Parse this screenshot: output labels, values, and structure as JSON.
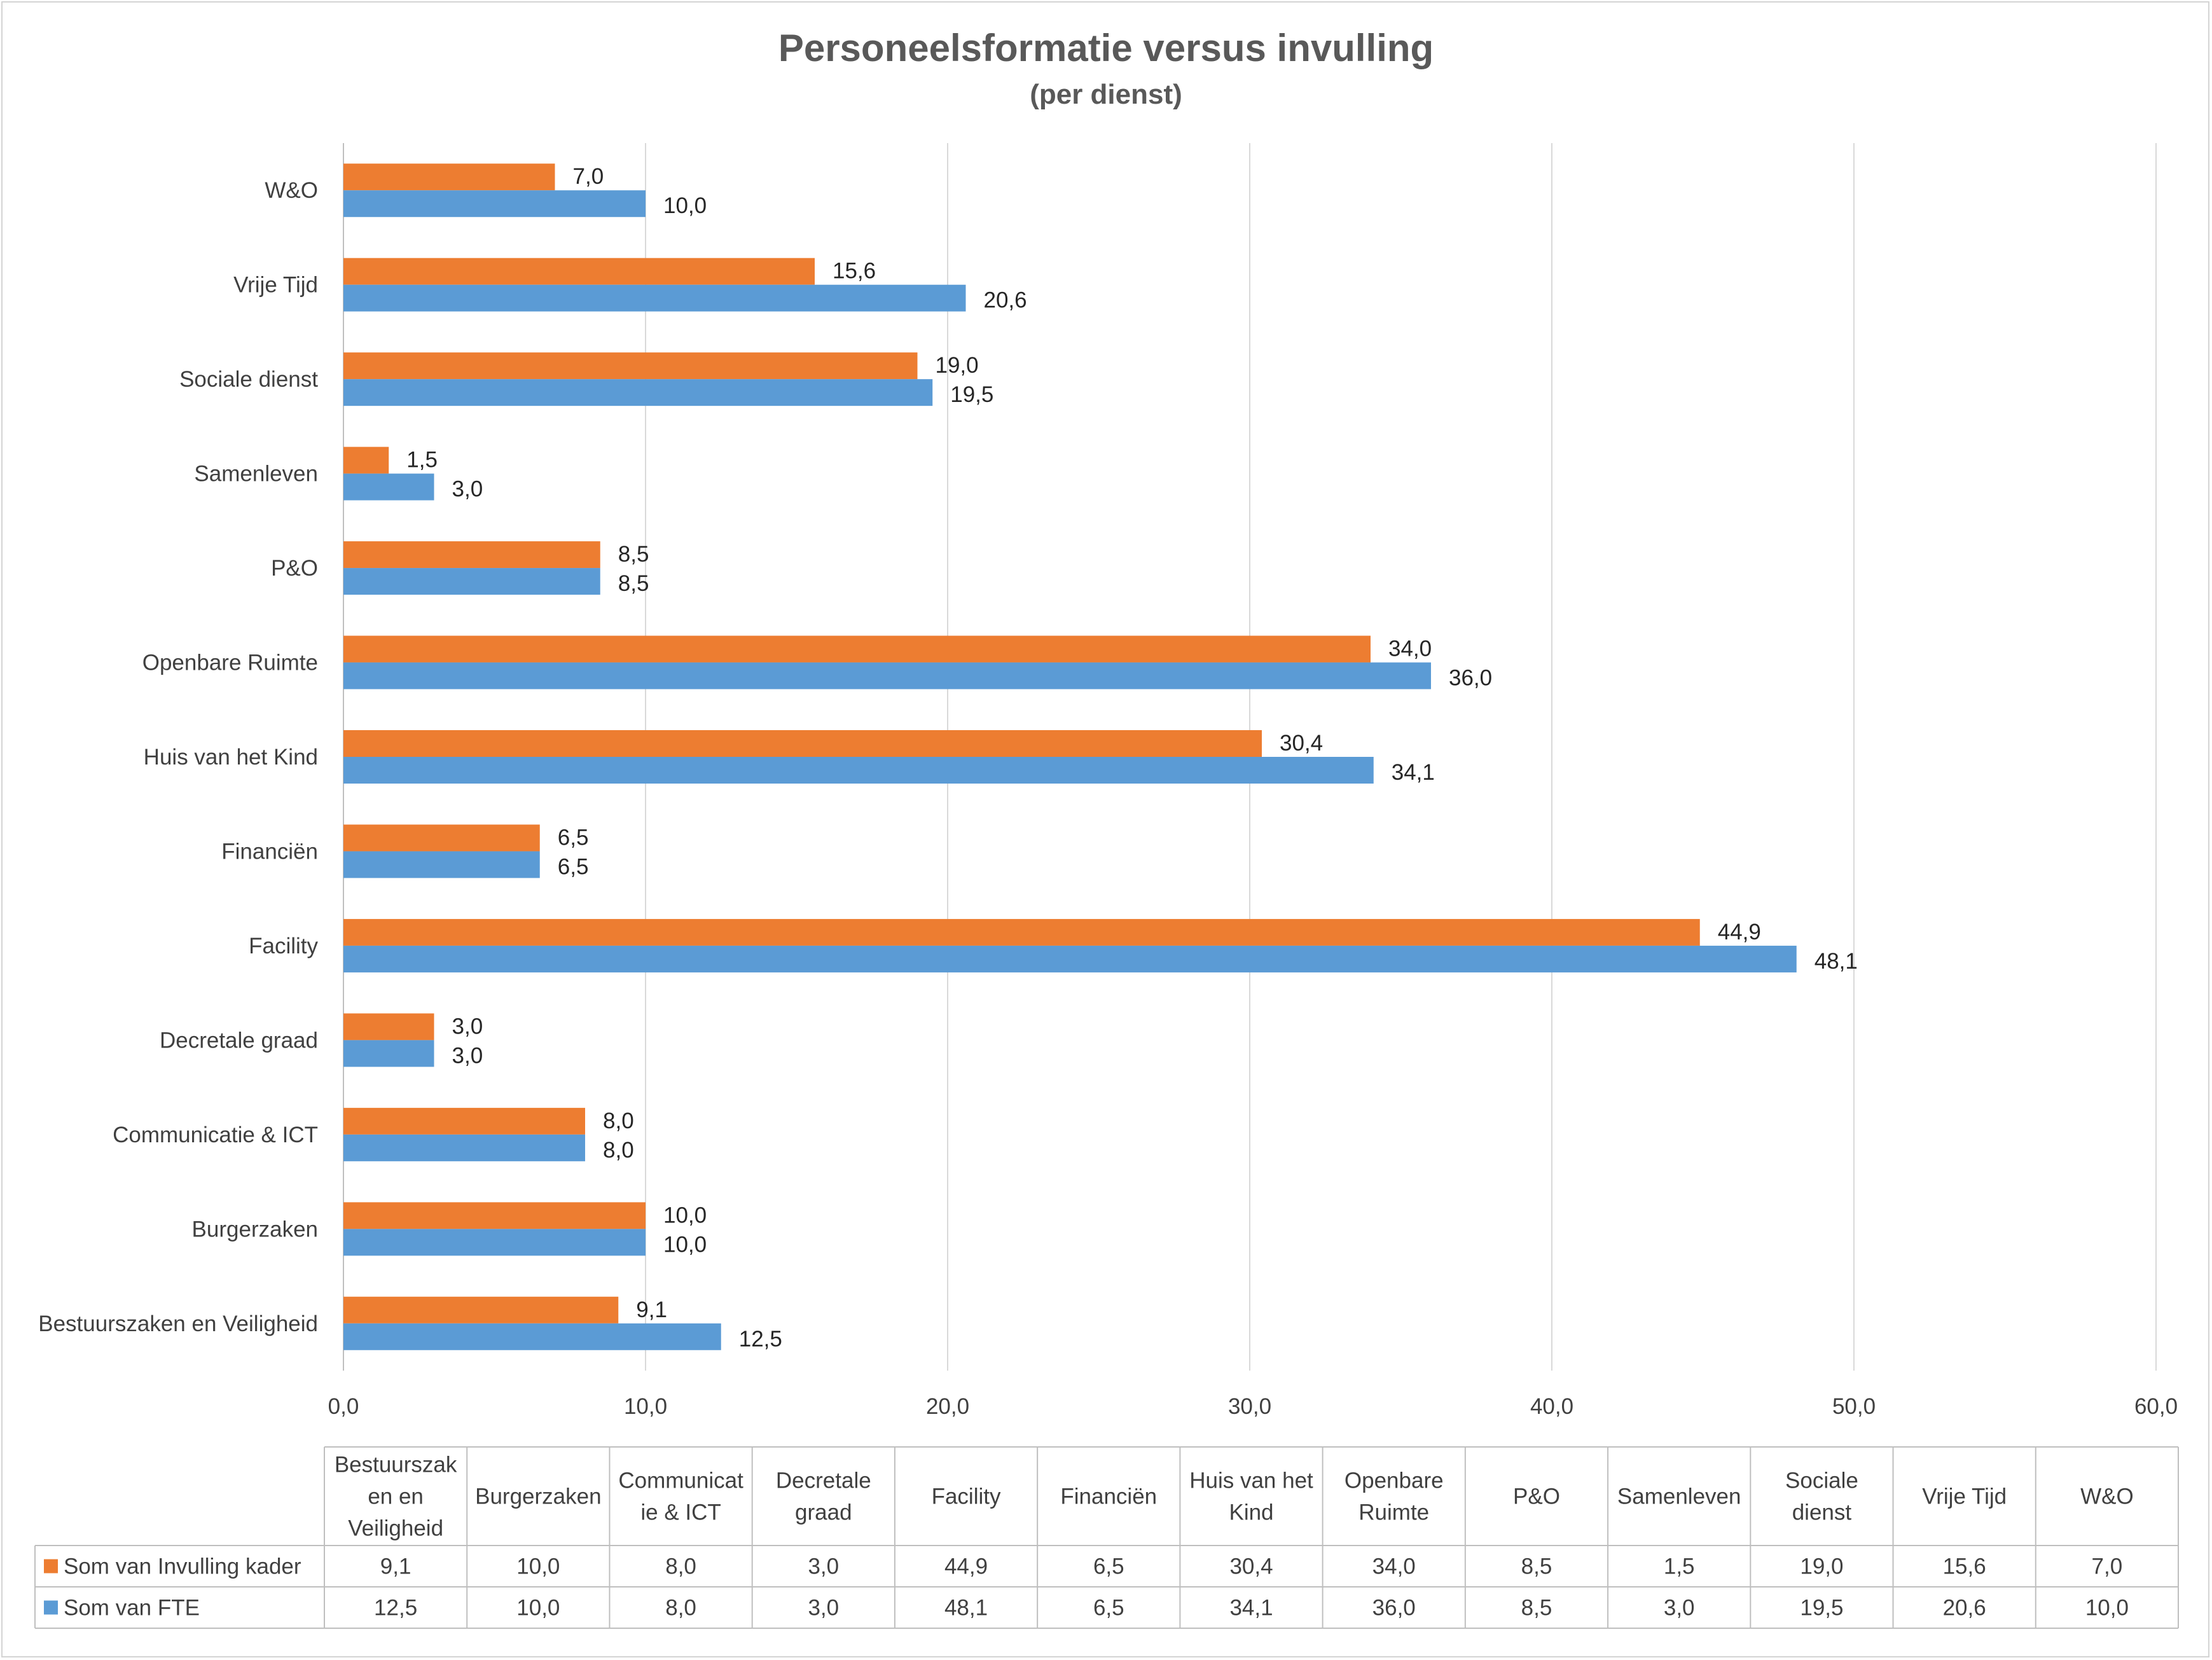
{
  "chart_data": {
    "type": "bar",
    "orientation": "horizontal",
    "title": "Personeelsformatie versus invulling",
    "subtitle": "(per dienst)",
    "categories": [
      "Bestuurszaken en Veiligheid",
      "Burgerzaken",
      "Communicatie & ICT",
      "Decretale graad",
      "Facility",
      "Financiën",
      "Huis van het Kind",
      "Openbare Ruimte",
      "P&O",
      "Samenleven",
      "Sociale dienst",
      "Vrije Tijd",
      "W&O"
    ],
    "series": [
      {
        "name": "Som van Invulling kader",
        "color": "#ED7D31",
        "values": [
          9.1,
          10.0,
          8.0,
          3.0,
          44.9,
          6.5,
          30.4,
          34.0,
          8.5,
          1.5,
          19.0,
          15.6,
          7.0
        ],
        "labels": [
          "9,1",
          "10,0",
          "8,0",
          "3,0",
          "44,9",
          "6,5",
          "30,4",
          "34,0",
          "8,5",
          "1,5",
          "19,0",
          "15,6",
          "7,0"
        ]
      },
      {
        "name": "Som van FTE",
        "color": "#5B9BD5",
        "values": [
          12.5,
          10.0,
          8.0,
          3.0,
          48.1,
          6.5,
          34.1,
          36.0,
          8.5,
          3.0,
          19.5,
          20.6,
          10.0
        ],
        "labels": [
          "12,5",
          "10,0",
          "8,0",
          "3,0",
          "48,1",
          "6,5",
          "34,1",
          "36,0",
          "8,5",
          "3,0",
          "19,5",
          "20,6",
          "10,0"
        ]
      }
    ],
    "xlim": [
      0,
      60
    ],
    "x_ticks": [
      "0,0",
      "10,0",
      "20,0",
      "30,0",
      "40,0",
      "50,0",
      "60,0"
    ],
    "grid": true,
    "legend": "data-table-below",
    "table_headers": [
      [
        "Bestuurszak",
        "en en",
        "Veiligheid"
      ],
      [
        "Burgerzaken"
      ],
      [
        "Communicat",
        "ie & ICT"
      ],
      [
        "Decretale",
        "graad"
      ],
      [
        "Facility"
      ],
      [
        "Financiën"
      ],
      [
        "Huis van het",
        "Kind"
      ],
      [
        "Openbare",
        "Ruimte"
      ],
      [
        "P&O"
      ],
      [
        "Samenleven"
      ],
      [
        "Sociale",
        "dienst"
      ],
      [
        "Vrije Tijd"
      ],
      [
        "W&O"
      ]
    ]
  }
}
